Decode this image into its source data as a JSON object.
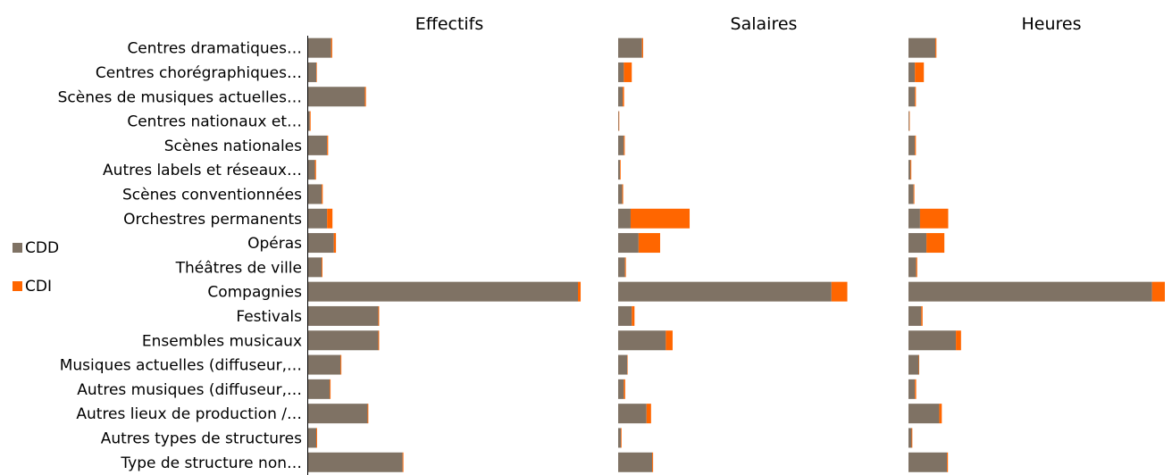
{
  "chart_data": {
    "type": "bar",
    "orientation": "horizontal",
    "stacked": true,
    "grid": false,
    "legend_position": "left",
    "categories": [
      "Centres dramatiques…",
      "Centres chorégraphiques…",
      "Scènes de musiques actuelles…",
      "Centres nationaux et…",
      "Scènes nationales",
      "Autres labels et réseaux…",
      "Scènes conventionnées",
      "Orchestres permanents",
      "Opéras",
      "Théâtres de ville",
      "Compagnies",
      "Festivals",
      "Ensembles musicaux",
      "Musiques actuelles (diffuseur,…",
      "Autres musiques (diffuseur,…",
      "Autres lieux de production /…",
      "Autres types de structures",
      "Type de structure non…"
    ],
    "legend": [
      {
        "name": "CDD",
        "color": "#7f7264"
      },
      {
        "name": "CDI",
        "color": "#ff6600"
      }
    ],
    "colors": {
      "CDD": "#7f7264",
      "CDI": "#ff6600",
      "axis": "#000000"
    },
    "panels": [
      {
        "title": "Effectifs",
        "xlim": [
          0,
          100
        ],
        "series": [
          {
            "name": "CDD",
            "values": [
              8.5,
              3,
              21,
              0.6,
              7,
              2.5,
              5,
              7,
              9.5,
              5,
              100,
              26,
              26,
              12,
              8,
              22,
              3,
              35
            ]
          },
          {
            "name": "CDI",
            "values": [
              0.4,
              0.2,
              0.4,
              0.3,
              0.4,
              0.4,
              0.4,
              2,
              0.8,
              0.3,
              1,
              0.3,
              0.3,
              0.3,
              0.3,
              0.3,
              0.3,
              0.3
            ]
          }
        ]
      },
      {
        "title": "Salaires",
        "xlim": [
          0,
          100
        ],
        "series": [
          {
            "name": "CDD",
            "values": [
              10.5,
              2.5,
              2,
              0.3,
              2.5,
              0.8,
              1.8,
              5.5,
              9,
              3,
              94,
              6,
              21,
              4,
              2.5,
              12.5,
              1.2,
              15
            ]
          },
          {
            "name": "CDI",
            "values": [
              0.5,
              3.5,
              0.6,
              0.1,
              0.4,
              0.3,
              0.4,
              26,
              9.5,
              0.4,
              7,
              1.2,
              3,
              0.2,
              0.6,
              2,
              0.3,
              0.4
            ]
          }
        ]
      },
      {
        "title": "Heures",
        "xlim": [
          0,
          100
        ],
        "series": [
          {
            "name": "CDD",
            "values": [
              10.5,
              2.5,
              2.5,
              0.3,
              2.5,
              0.8,
              2,
              4.5,
              7,
              3,
              95,
              5,
              18.5,
              4,
              2.5,
              12,
              1.2,
              15
            ]
          },
          {
            "name": "CDI",
            "values": [
              0.4,
              3.5,
              0.4,
              0.1,
              0.4,
              0.3,
              0.3,
              11,
              7,
              0.4,
              5,
              0.5,
              2,
              0.1,
              0.5,
              1,
              0.3,
              0.4
            ]
          }
        ]
      }
    ]
  }
}
